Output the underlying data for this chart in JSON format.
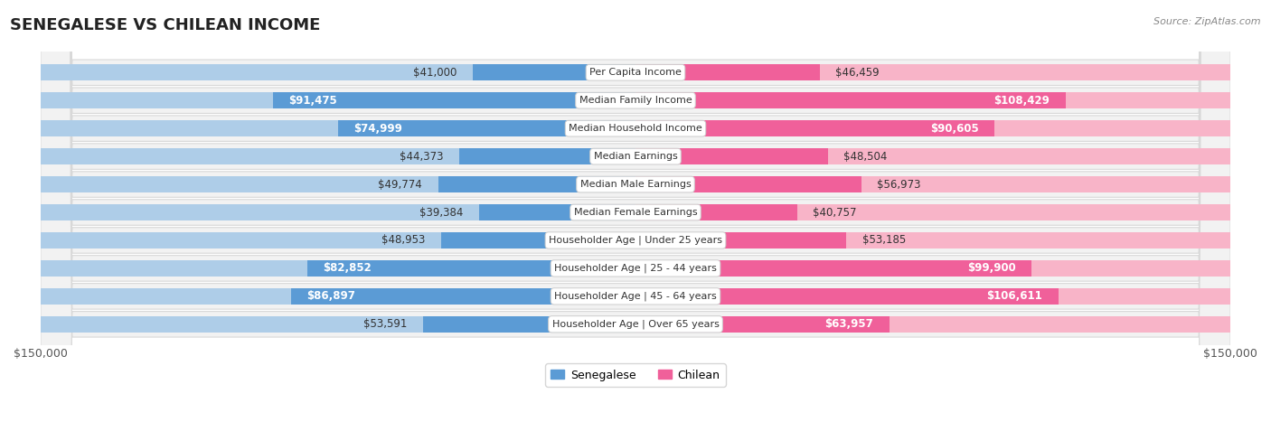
{
  "title": "SENEGALESE VS CHILEAN INCOME",
  "source": "Source: ZipAtlas.com",
  "categories": [
    "Per Capita Income",
    "Median Family Income",
    "Median Household Income",
    "Median Earnings",
    "Median Male Earnings",
    "Median Female Earnings",
    "Householder Age | Under 25 years",
    "Householder Age | 25 - 44 years",
    "Householder Age | 45 - 64 years",
    "Householder Age | Over 65 years"
  ],
  "senegalese": [
    41000,
    91475,
    74999,
    44373,
    49774,
    39384,
    48953,
    82852,
    86897,
    53591
  ],
  "chilean": [
    46459,
    108429,
    90605,
    48504,
    56973,
    40757,
    53185,
    99900,
    106611,
    63957
  ],
  "senegalese_labels": [
    "$41,000",
    "$91,475",
    "$74,999",
    "$44,373",
    "$49,774",
    "$39,384",
    "$48,953",
    "$82,852",
    "$86,897",
    "$53,591"
  ],
  "chilean_labels": [
    "$46,459",
    "$108,429",
    "$90,605",
    "$48,504",
    "$56,973",
    "$40,757",
    "$53,185",
    "$99,900",
    "$106,611",
    "$63,957"
  ],
  "sen_light": "#aecde8",
  "sen_dark": "#5b9bd5",
  "chi_light": "#f8b4c8",
  "chi_dark": "#f0609a",
  "max_value": 150000,
  "background_color": "#ffffff",
  "row_bg_color": "#f2f2f2",
  "row_border_color": "#d8d8d8",
  "title_fontsize": 13,
  "label_fontsize": 8.5,
  "category_fontsize": 8,
  "axis_label_fontsize": 9,
  "inside_threshold": 60000
}
